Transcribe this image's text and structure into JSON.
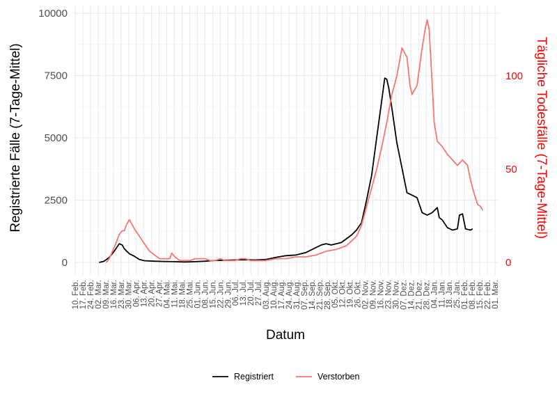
{
  "chart_data": {
    "type": "line",
    "xlabel": "Datum",
    "ylabel": "Registrierte Fälle (7-Tage-Mittel)",
    "ylabel_right": "Tägliche Todesfälle (7-Tage-Mittel)",
    "ylim": [
      0,
      10000
    ],
    "ylim_right": [
      0,
      140
    ],
    "yticks": [
      "0",
      "2500",
      "5000",
      "7500",
      "10000"
    ],
    "yticks_right": [
      "0",
      "50",
      "100"
    ],
    "xticks": [
      "10. Feb.",
      "17. Feb.",
      "24. Feb.",
      "02. Mar.",
      "09. Mar.",
      "16. Mar.",
      "23. Mar.",
      "30. Mar.",
      "06. Apr.",
      "13. Apr.",
      "20. Apr.",
      "27. Apr.",
      "04. Mai.",
      "11. Mai.",
      "18. Mai.",
      "25. Mai.",
      "01. Jun.",
      "08. Jun.",
      "15. Jun.",
      "22. Jun.",
      "29. Jun.",
      "06. Jul.",
      "13. Jul.",
      "20. Jul.",
      "27. Jul.",
      "03. Aug.",
      "10. Aug.",
      "17. Aug.",
      "24. Aug.",
      "31. Aug.",
      "07. Sep.",
      "14. Sep.",
      "21. Sep.",
      "28. Sep.",
      "05. Okt.",
      "12. Okt.",
      "19. Okt.",
      "26. Okt.",
      "02. Nov.",
      "09. Nov.",
      "16. Nov.",
      "23. Nov.",
      "30. Nov.",
      "07. Dez.",
      "14. Dez.",
      "21. Dez.",
      "28. Dez.",
      "04. Jan.",
      "11. Jan.",
      "18. Jan.",
      "25. Jan.",
      "01. Feb.",
      "08. Feb.",
      "15. Feb.",
      "22. Feb.",
      "01. Mar."
    ],
    "legend_position": "bottom",
    "grid": true,
    "series": [
      {
        "name": "Registriert",
        "axis": "left",
        "color": "#000000",
        "points": [
          [
            25,
            0
          ],
          [
            30,
            50
          ],
          [
            35,
            200
          ],
          [
            40,
            450
          ],
          [
            45,
            750
          ],
          [
            48,
            700
          ],
          [
            50,
            550
          ],
          [
            55,
            350
          ],
          [
            60,
            250
          ],
          [
            65,
            120
          ],
          [
            70,
            70
          ],
          [
            80,
            50
          ],
          [
            90,
            40
          ],
          [
            100,
            30
          ],
          [
            110,
            20
          ],
          [
            120,
            30
          ],
          [
            130,
            50
          ],
          [
            140,
            80
          ],
          [
            150,
            90
          ],
          [
            160,
            100
          ],
          [
            170,
            110
          ],
          [
            180,
            100
          ],
          [
            190,
            120
          ],
          [
            200,
            200
          ],
          [
            210,
            270
          ],
          [
            220,
            300
          ],
          [
            230,
            400
          ],
          [
            240,
            600
          ],
          [
            245,
            700
          ],
          [
            250,
            750
          ],
          [
            255,
            700
          ],
          [
            260,
            750
          ],
          [
            265,
            800
          ],
          [
            270,
            950
          ],
          [
            275,
            1100
          ],
          [
            280,
            1300
          ],
          [
            285,
            1600
          ],
          [
            290,
            2500
          ],
          [
            295,
            3500
          ],
          [
            300,
            5000
          ],
          [
            305,
            6500
          ],
          [
            308,
            7400
          ],
          [
            310,
            7350
          ],
          [
            312,
            7000
          ],
          [
            315,
            6200
          ],
          [
            320,
            4800
          ],
          [
            325,
            3800
          ],
          [
            330,
            2800
          ],
          [
            335,
            2700
          ],
          [
            340,
            2600
          ],
          [
            345,
            2000
          ],
          [
            350,
            1900
          ],
          [
            355,
            2000
          ],
          [
            360,
            2200
          ],
          [
            362,
            1800
          ],
          [
            365,
            1700
          ],
          [
            370,
            1400
          ],
          [
            375,
            1300
          ],
          [
            380,
            1350
          ],
          [
            382,
            1900
          ],
          [
            385,
            1950
          ],
          [
            388,
            1350
          ],
          [
            393,
            1300
          ],
          [
            395,
            1350
          ]
        ]
      },
      {
        "name": "Verstorben",
        "axis": "right",
        "color": "#f8766d",
        "points": [
          [
            32,
            0
          ],
          [
            35,
            2
          ],
          [
            40,
            8
          ],
          [
            45,
            15
          ],
          [
            48,
            17
          ],
          [
            50,
            17
          ],
          [
            52,
            20
          ],
          [
            55,
            23
          ],
          [
            60,
            18
          ],
          [
            65,
            14
          ],
          [
            70,
            10
          ],
          [
            75,
            6
          ],
          [
            80,
            4
          ],
          [
            85,
            2
          ],
          [
            90,
            2
          ],
          [
            95,
            2
          ],
          [
            97,
            5
          ],
          [
            100,
            3
          ],
          [
            105,
            1
          ],
          [
            110,
            1
          ],
          [
            115,
            1
          ],
          [
            120,
            2
          ],
          [
            125,
            2
          ],
          [
            130,
            2
          ],
          [
            135,
            1
          ],
          [
            140,
            1
          ],
          [
            145,
            2
          ],
          [
            150,
            1
          ],
          [
            155,
            1
          ],
          [
            160,
            1
          ],
          [
            165,
            2
          ],
          [
            170,
            2
          ],
          [
            175,
            1
          ],
          [
            180,
            1
          ],
          [
            185,
            1
          ],
          [
            190,
            1
          ],
          [
            200,
            2
          ],
          [
            210,
            2
          ],
          [
            220,
            3
          ],
          [
            230,
            3
          ],
          [
            240,
            4
          ],
          [
            250,
            6
          ],
          [
            260,
            7
          ],
          [
            270,
            9
          ],
          [
            280,
            14
          ],
          [
            285,
            20
          ],
          [
            290,
            30
          ],
          [
            295,
            40
          ],
          [
            300,
            50
          ],
          [
            305,
            62
          ],
          [
            310,
            75
          ],
          [
            315,
            90
          ],
          [
            320,
            100
          ],
          [
            325,
            115
          ],
          [
            330,
            110
          ],
          [
            333,
            95
          ],
          [
            335,
            90
          ],
          [
            340,
            95
          ],
          [
            345,
            115
          ],
          [
            348,
            125
          ],
          [
            350,
            130
          ],
          [
            352,
            125
          ],
          [
            355,
            95
          ],
          [
            357,
            75
          ],
          [
            360,
            65
          ],
          [
            365,
            62
          ],
          [
            370,
            58
          ],
          [
            375,
            55
          ],
          [
            380,
            52
          ],
          [
            385,
            55
          ],
          [
            390,
            52
          ],
          [
            393,
            44
          ],
          [
            396,
            38
          ],
          [
            400,
            31
          ],
          [
            403,
            30
          ],
          [
            405,
            28
          ]
        ]
      }
    ]
  }
}
